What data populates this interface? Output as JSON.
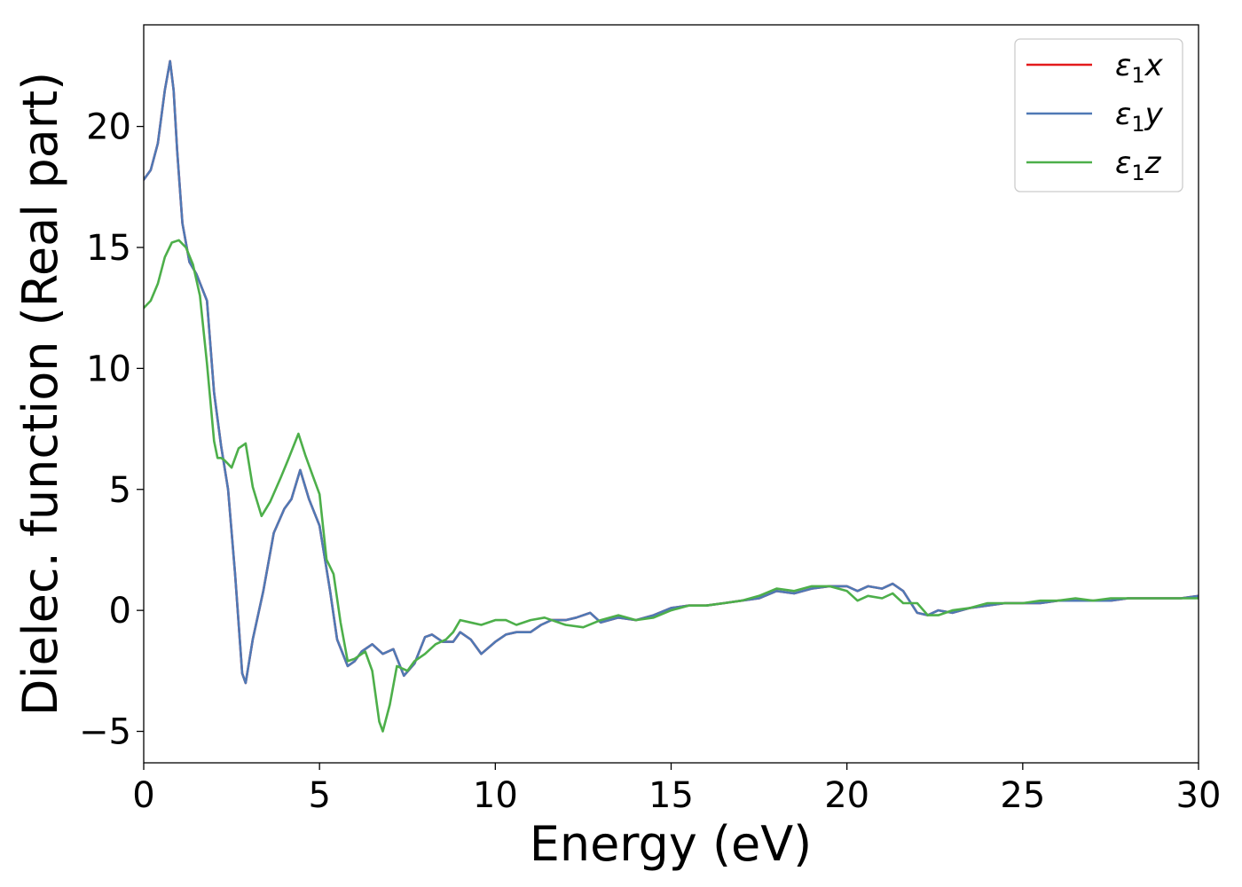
{
  "chart_data": {
    "type": "line",
    "xlabel": "Energy (eV)",
    "ylabel": "Dielec. function (Real part)",
    "xlim": [
      0,
      30
    ],
    "ylim": [
      -6.3,
      24.2
    ],
    "xticks": [
      0,
      5,
      10,
      15,
      20,
      25,
      30
    ],
    "xtick_labels": [
      "0",
      "5",
      "10",
      "15",
      "20",
      "25",
      "30"
    ],
    "yticks": [
      -5,
      0,
      5,
      10,
      15,
      20
    ],
    "ytick_labels": [
      "−5",
      "0",
      "5",
      "10",
      "15",
      "20"
    ],
    "grid": false,
    "legend_position": "top-right",
    "series": [
      {
        "name": "ε₁x",
        "legend_symbol": "ε",
        "legend_sub": "1",
        "legend_suffix": "x",
        "color": "#e41a1c",
        "x": [
          0,
          0.2,
          0.4,
          0.6,
          0.75,
          0.85,
          0.95,
          1.1,
          1.3,
          1.5,
          1.8,
          2.0,
          2.2,
          2.4,
          2.6,
          2.8,
          2.9,
          3.1,
          3.4,
          3.7,
          4.0,
          4.2,
          4.45,
          4.7,
          5.0,
          5.3,
          5.5,
          5.8,
          6.0,
          6.2,
          6.5,
          6.8,
          7.1,
          7.4,
          7.7,
          8.0,
          8.2,
          8.5,
          8.8,
          9.0,
          9.3,
          9.6,
          10.0,
          10.3,
          10.6,
          11.0,
          11.3,
          11.6,
          12.0,
          12.3,
          12.7,
          13.0,
          13.5,
          14.0,
          14.5,
          15.0,
          15.5,
          16.0,
          16.5,
          17.0,
          17.5,
          18.0,
          18.5,
          19.0,
          19.5,
          20.0,
          20.3,
          20.6,
          21.0,
          21.3,
          21.6,
          22.0,
          22.3,
          22.6,
          23.0,
          23.5,
          24.0,
          24.5,
          25.0,
          25.5,
          26.0,
          26.5,
          27.0,
          27.5,
          28.0,
          28.5,
          29.0,
          29.5,
          30.0
        ],
        "y": [
          17.8,
          18.2,
          19.3,
          21.5,
          22.7,
          21.5,
          19.0,
          16.0,
          14.4,
          13.9,
          12.8,
          9.0,
          6.8,
          5.0,
          1.5,
          -2.6,
          -3.0,
          -1.2,
          0.8,
          3.2,
          4.2,
          4.6,
          5.8,
          4.6,
          3.5,
          0.8,
          -1.2,
          -2.3,
          -2.1,
          -1.7,
          -1.4,
          -1.8,
          -1.6,
          -2.7,
          -2.2,
          -1.1,
          -1.0,
          -1.3,
          -1.3,
          -0.9,
          -1.2,
          -1.8,
          -1.3,
          -1.0,
          -0.9,
          -0.9,
          -0.6,
          -0.4,
          -0.4,
          -0.3,
          -0.1,
          -0.5,
          -0.3,
          -0.4,
          -0.2,
          0.1,
          0.2,
          0.2,
          0.3,
          0.4,
          0.5,
          0.8,
          0.7,
          0.9,
          1.0,
          1.0,
          0.8,
          1.0,
          0.9,
          1.1,
          0.8,
          -0.1,
          -0.2,
          0.0,
          -0.1,
          0.1,
          0.2,
          0.3,
          0.3,
          0.3,
          0.4,
          0.4,
          0.4,
          0.4,
          0.5,
          0.5,
          0.5,
          0.5,
          0.6
        ]
      },
      {
        "name": "ε₁y",
        "legend_symbol": "ε",
        "legend_sub": "1",
        "legend_suffix": "y",
        "color": "#4f79b5",
        "x": [
          0,
          0.2,
          0.4,
          0.6,
          0.75,
          0.85,
          0.95,
          1.1,
          1.3,
          1.5,
          1.8,
          2.0,
          2.2,
          2.4,
          2.6,
          2.8,
          2.9,
          3.1,
          3.4,
          3.7,
          4.0,
          4.2,
          4.45,
          4.7,
          5.0,
          5.3,
          5.5,
          5.8,
          6.0,
          6.2,
          6.5,
          6.8,
          7.1,
          7.4,
          7.7,
          8.0,
          8.2,
          8.5,
          8.8,
          9.0,
          9.3,
          9.6,
          10.0,
          10.3,
          10.6,
          11.0,
          11.3,
          11.6,
          12.0,
          12.3,
          12.7,
          13.0,
          13.5,
          14.0,
          14.5,
          15.0,
          15.5,
          16.0,
          16.5,
          17.0,
          17.5,
          18.0,
          18.5,
          19.0,
          19.5,
          20.0,
          20.3,
          20.6,
          21.0,
          21.3,
          21.6,
          22.0,
          22.3,
          22.6,
          23.0,
          23.5,
          24.0,
          24.5,
          25.0,
          25.5,
          26.0,
          26.5,
          27.0,
          27.5,
          28.0,
          28.5,
          29.0,
          29.5,
          30.0
        ],
        "y": [
          17.8,
          18.2,
          19.3,
          21.5,
          22.7,
          21.5,
          19.0,
          16.0,
          14.4,
          13.9,
          12.8,
          9.0,
          6.8,
          5.0,
          1.5,
          -2.6,
          -3.0,
          -1.2,
          0.8,
          3.2,
          4.2,
          4.6,
          5.8,
          4.6,
          3.5,
          0.8,
          -1.2,
          -2.3,
          -2.1,
          -1.7,
          -1.4,
          -1.8,
          -1.6,
          -2.7,
          -2.2,
          -1.1,
          -1.0,
          -1.3,
          -1.3,
          -0.9,
          -1.2,
          -1.8,
          -1.3,
          -1.0,
          -0.9,
          -0.9,
          -0.6,
          -0.4,
          -0.4,
          -0.3,
          -0.1,
          -0.5,
          -0.3,
          -0.4,
          -0.2,
          0.1,
          0.2,
          0.2,
          0.3,
          0.4,
          0.5,
          0.8,
          0.7,
          0.9,
          1.0,
          1.0,
          0.8,
          1.0,
          0.9,
          1.1,
          0.8,
          -0.1,
          -0.2,
          0.0,
          -0.1,
          0.1,
          0.2,
          0.3,
          0.3,
          0.3,
          0.4,
          0.4,
          0.4,
          0.4,
          0.5,
          0.5,
          0.5,
          0.5,
          0.6
        ]
      },
      {
        "name": "ε₁z",
        "legend_symbol": "ε",
        "legend_sub": "1",
        "legend_suffix": "z",
        "color": "#4daf4a",
        "x": [
          0,
          0.2,
          0.4,
          0.6,
          0.8,
          1.0,
          1.2,
          1.4,
          1.6,
          1.8,
          2.0,
          2.1,
          2.2,
          2.3,
          2.5,
          2.7,
          2.9,
          3.1,
          3.35,
          3.6,
          3.9,
          4.1,
          4.4,
          4.6,
          4.8,
          5.0,
          5.2,
          5.4,
          5.6,
          5.8,
          6.0,
          6.3,
          6.5,
          6.7,
          6.8,
          7.0,
          7.2,
          7.5,
          7.7,
          8.0,
          8.3,
          8.6,
          8.8,
          9.0,
          9.3,
          9.6,
          10.0,
          10.3,
          10.6,
          11.0,
          11.4,
          11.8,
          12.0,
          12.5,
          13.0,
          13.5,
          14.0,
          14.5,
          15.0,
          15.5,
          16.0,
          16.5,
          17.0,
          17.5,
          18.0,
          18.5,
          19.0,
          19.5,
          20.0,
          20.3,
          20.6,
          21.0,
          21.3,
          21.6,
          22.0,
          22.3,
          22.6,
          23.0,
          23.5,
          24.0,
          24.5,
          25.0,
          25.5,
          26.0,
          26.5,
          27.0,
          27.5,
          28.0,
          28.5,
          29.0,
          29.5,
          30.0
        ],
        "y": [
          12.5,
          12.8,
          13.5,
          14.6,
          15.2,
          15.3,
          15.0,
          14.3,
          13.0,
          10.2,
          7.0,
          6.3,
          6.3,
          6.2,
          5.9,
          6.7,
          6.9,
          5.1,
          3.9,
          4.5,
          5.5,
          6.2,
          7.3,
          6.4,
          5.6,
          4.8,
          2.1,
          1.5,
          -0.5,
          -2.1,
          -2.0,
          -1.7,
          -2.5,
          -4.6,
          -5.0,
          -3.9,
          -2.3,
          -2.5,
          -2.1,
          -1.8,
          -1.4,
          -1.2,
          -0.9,
          -0.4,
          -0.5,
          -0.6,
          -0.4,
          -0.4,
          -0.6,
          -0.4,
          -0.3,
          -0.5,
          -0.6,
          -0.7,
          -0.4,
          -0.2,
          -0.4,
          -0.3,
          0.0,
          0.2,
          0.2,
          0.3,
          0.4,
          0.6,
          0.9,
          0.8,
          1.0,
          1.0,
          0.8,
          0.4,
          0.6,
          0.5,
          0.7,
          0.3,
          0.3,
          -0.2,
          -0.2,
          0.0,
          0.1,
          0.3,
          0.3,
          0.3,
          0.4,
          0.4,
          0.5,
          0.4,
          0.5,
          0.5,
          0.5,
          0.5,
          0.5,
          0.5
        ]
      }
    ]
  }
}
